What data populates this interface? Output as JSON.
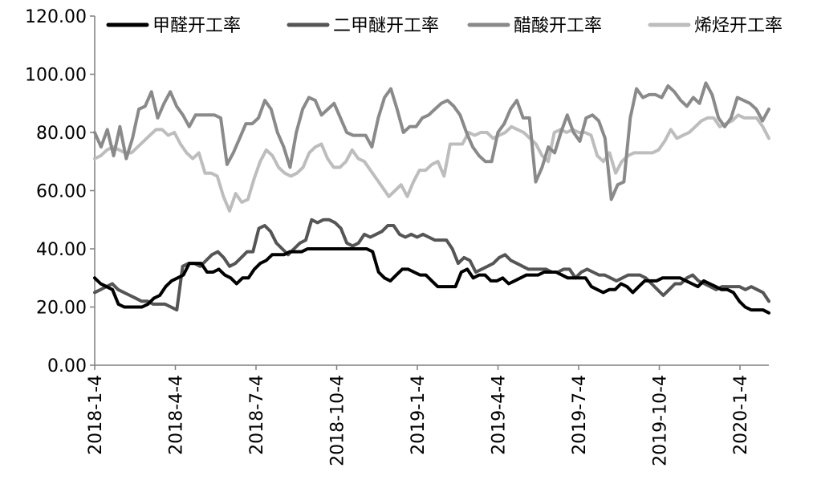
{
  "chart_data": {
    "type": "line",
    "title": "",
    "xlabel": "",
    "ylabel": "",
    "ylim": [
      0,
      120
    ],
    "yticks": [
      "0.00",
      "20.00",
      "40.00",
      "60.00",
      "80.00",
      "100.00",
      "120.00"
    ],
    "xticks": [
      "2018-1-4",
      "2018-4-4",
      "2018-7-4",
      "2018-10-4",
      "2019-1-4",
      "2019-4-4",
      "2019-7-4",
      "2019-10-4",
      "2020-1-4"
    ],
    "grid": false,
    "legend_position": "top",
    "series": [
      {
        "name": "甲醛开工率",
        "color": "#000000",
        "values": [
          30,
          28,
          27,
          26,
          21,
          20,
          20,
          20,
          20,
          21,
          23,
          24,
          27,
          29,
          30,
          31,
          35,
          35,
          35,
          32,
          32,
          33,
          31,
          30,
          28,
          30,
          30,
          33,
          35,
          36,
          38,
          38,
          38,
          39,
          39,
          39,
          40,
          40,
          40,
          40,
          40,
          40,
          40,
          40,
          40,
          40,
          40,
          39,
          32,
          30,
          29,
          31,
          33,
          33,
          32,
          31,
          31,
          29,
          27,
          27,
          27,
          27,
          32,
          33,
          30,
          31,
          31,
          29,
          29,
          30,
          28,
          29,
          30,
          31,
          31,
          31,
          32,
          32,
          32,
          31,
          30,
          30,
          30,
          30,
          27,
          26,
          25,
          26,
          26,
          28,
          27,
          25,
          27,
          29,
          29,
          29,
          30,
          30,
          30,
          30,
          29,
          28,
          27,
          29,
          28,
          27,
          26,
          26,
          25,
          22,
          20,
          19,
          19,
          19,
          18
        ]
      },
      {
        "name": "二甲醚开工率",
        "color": "#555555",
        "values": [
          25,
          26,
          27,
          28,
          26,
          25,
          24,
          23,
          22,
          22,
          21,
          21,
          21,
          20,
          19,
          34,
          35,
          35,
          34,
          36,
          38,
          39,
          37,
          34,
          35,
          37,
          39,
          39,
          47,
          48,
          46,
          42,
          40,
          38,
          40,
          42,
          43,
          50,
          49,
          50,
          50,
          49,
          47,
          42,
          41,
          42,
          45,
          44,
          45,
          46,
          48,
          48,
          45,
          44,
          45,
          44,
          45,
          44,
          43,
          43,
          43,
          40,
          35,
          37,
          36,
          32,
          33,
          34,
          35,
          37,
          38,
          36,
          35,
          34,
          33,
          33,
          33,
          33,
          32,
          32,
          33,
          33,
          30,
          32,
          33,
          32,
          31,
          31,
          30,
          29,
          30,
          31,
          31,
          31,
          30,
          28,
          26,
          24,
          26,
          28,
          28,
          30,
          31,
          29,
          28,
          27,
          26,
          27,
          27,
          27,
          27,
          26,
          27,
          26,
          25,
          22
        ]
      },
      {
        "name": "醋酸开工率",
        "color": "#8a8a8a",
        "values": [
          80,
          75,
          81,
          72,
          82,
          71,
          78,
          88,
          89,
          94,
          85,
          90,
          94,
          89,
          86,
          82,
          86,
          86,
          86,
          86,
          85,
          69,
          73,
          78,
          83,
          83,
          85,
          91,
          88,
          80,
          75,
          68,
          80,
          88,
          92,
          91,
          86,
          88,
          90,
          85,
          80,
          79,
          79,
          79,
          75,
          85,
          92,
          95,
          88,
          80,
          82,
          82,
          85,
          86,
          88,
          90,
          91,
          89,
          86,
          80,
          75,
          72,
          70,
          70,
          80,
          83,
          88,
          91,
          85,
          85,
          63,
          68,
          75,
          73,
          80,
          86,
          80,
          77,
          85,
          86,
          84,
          78,
          57,
          62,
          63,
          85,
          95,
          92,
          93,
          93,
          92,
          96,
          94,
          91,
          89,
          92,
          90,
          97,
          93,
          85,
          82,
          85,
          92,
          91,
          90,
          88,
          84,
          88
        ]
      },
      {
        "name": "烯烃开工率",
        "color": "#bdbdbd",
        "values": [
          71,
          72,
          74,
          75,
          74,
          73,
          73,
          75,
          77,
          79,
          81,
          81,
          79,
          80,
          76,
          73,
          71,
          73,
          66,
          66,
          65,
          58,
          53,
          59,
          56,
          57,
          64,
          70,
          74,
          72,
          68,
          66,
          65,
          66,
          68,
          73,
          75,
          76,
          71,
          68,
          68,
          70,
          74,
          71,
          70,
          67,
          64,
          61,
          58,
          60,
          62,
          58,
          63,
          67,
          67,
          69,
          70,
          65,
          76,
          76,
          76,
          80,
          79,
          80,
          80,
          78,
          79,
          80,
          82,
          81,
          80,
          78,
          76,
          72,
          70,
          80,
          81,
          80,
          81,
          80,
          80,
          79,
          72,
          70,
          73,
          66,
          70,
          72,
          73,
          73,
          73,
          73,
          74,
          77,
          81,
          78,
          79,
          80,
          82,
          84,
          85,
          85,
          82,
          83,
          84,
          86,
          85,
          85,
          85,
          82,
          78
        ]
      }
    ]
  }
}
